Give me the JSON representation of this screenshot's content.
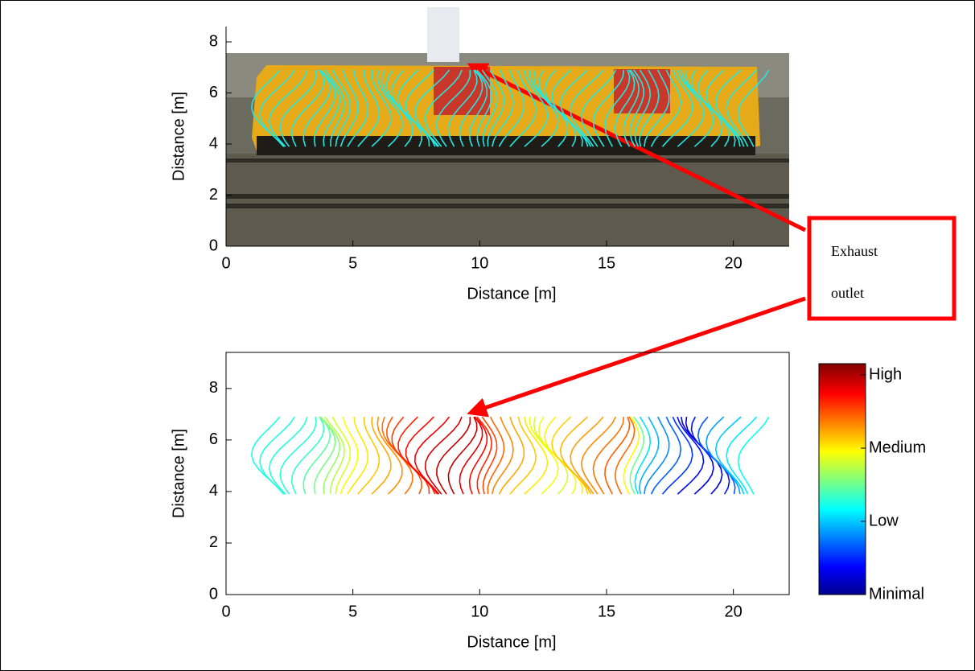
{
  "annotation": "Exhaust outlet",
  "chart_data": [
    {
      "type": "image",
      "xlabel": "Distance [m]",
      "ylabel": "Distance [m]",
      "xlim": [
        0,
        22.2
      ],
      "ylim": [
        0,
        8.6
      ],
      "xticks": [
        0,
        5,
        10,
        15,
        20
      ],
      "yticks": [
        0,
        2,
        4,
        6,
        8
      ]
    },
    {
      "type": "contour",
      "xlabel": "Distance [m]",
      "ylabel": "Distance [m]",
      "xlim": [
        0,
        22.2
      ],
      "ylim": [
        0,
        9.4
      ],
      "xticks": [
        0,
        5,
        10,
        15,
        20
      ],
      "yticks": [
        0,
        2,
        4,
        6,
        8
      ],
      "colorbar_labels": [
        "High",
        "Medium",
        "Low",
        "Minimal"
      ]
    }
  ]
}
